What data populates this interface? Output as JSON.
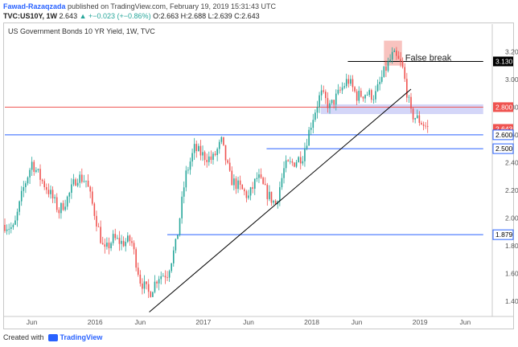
{
  "header": {
    "author": "Fawad-Razaqzada",
    "published": "published on TradingView.com, February 19, 2019 15:31:43 UTC",
    "symbol": "TVC:US10Y, 1W",
    "last": "2.643",
    "change": "▲ +−0.023 (+−0.86%)",
    "ohlc": "O:2.663 H:2.688 L:2.639 C:2.643"
  },
  "footer": {
    "created_with": "Created with",
    "brand": "TradingView"
  },
  "colors": {
    "up": "#26a69a",
    "down": "#ef5350",
    "red_line": "#ef5350",
    "blue_line": "#2962ff",
    "zone": "#c5c8f5",
    "pink": "#f7b9b4"
  },
  "chart_data": {
    "type": "candlestick",
    "title": "US Government Bonds 10 YR Yield, 1W, TVC",
    "x_tick_labels": [
      "Jun",
      "2016",
      "Jun",
      "2017",
      "Jun",
      "2018",
      "Jun",
      "2019",
      "Jun"
    ],
    "x_tick_dates": [
      "2015-06",
      "2016-01",
      "2016-06",
      "2017-01",
      "2017-06",
      "2018-01",
      "2018-06",
      "2019-01",
      "2019-06"
    ],
    "y_ticks": [
      "3.200",
      "3.000",
      "2.800",
      "2.600",
      "2.400",
      "2.200",
      "2.000",
      "1.800",
      "1.600",
      "1.400"
    ],
    "ylim": [
      1.3,
      3.33
    ],
    "price_labels": [
      {
        "value": 3.13,
        "text": "3.130",
        "style": "black"
      },
      {
        "value": 2.8,
        "text": "2.800",
        "style": "red"
      },
      {
        "value": 2.643,
        "text": "2.643",
        "style": "red"
      },
      {
        "value": 2.6,
        "text": "2.600",
        "style": "blue"
      },
      {
        "value": 2.5,
        "text": "2.500",
        "style": "blue"
      },
      {
        "value": 1.879,
        "text": "1.879",
        "style": "blue"
      }
    ],
    "horizontal_lines": [
      {
        "value": 2.8,
        "color": "red",
        "from_date": "2015-03",
        "to_date": "2019-08"
      },
      {
        "value": 2.6,
        "color": "blue",
        "from_date": "2015-03",
        "to_date": "2019-08"
      },
      {
        "value": 2.5,
        "color": "blue",
        "from_date": "2017-08",
        "to_date": "2019-08"
      },
      {
        "value": 1.879,
        "color": "blue",
        "from_date": "2016-09",
        "to_date": "2019-08"
      },
      {
        "value": 3.13,
        "color": "black",
        "from_date": "2018-05",
        "to_date": "2019-08"
      }
    ],
    "zone": {
      "low": 2.75,
      "high": 2.82,
      "from_date": "2018-02",
      "to_date": "2019-08"
    },
    "trendline": {
      "from": [
        "2016-07",
        1.32
      ],
      "to": [
        "2018-12",
        2.93
      ]
    },
    "annotation": {
      "text": "False break",
      "date": "2018-11",
      "value": 3.16
    },
    "highlight": {
      "from_date": "2018-09",
      "to_date": "2018-11",
      "low": 3.1,
      "high": 3.28
    },
    "close_path": [
      [
        "2015-03",
        1.95
      ],
      [
        "2015-04",
        1.92
      ],
      [
        "2015-05",
        2.2
      ],
      [
        "2015-06",
        2.4
      ],
      [
        "2015-07",
        2.28
      ],
      [
        "2015-08",
        2.18
      ],
      [
        "2015-09",
        2.05
      ],
      [
        "2015-10",
        2.15
      ],
      [
        "2015-11",
        2.3
      ],
      [
        "2015-12",
        2.27
      ],
      [
        "2016-01",
        2.02
      ],
      [
        "2016-02",
        1.75
      ],
      [
        "2016-03",
        1.85
      ],
      [
        "2016-04",
        1.82
      ],
      [
        "2016-05",
        1.84
      ],
      [
        "2016-06",
        1.55
      ],
      [
        "2016-07",
        1.45
      ],
      [
        "2016-08",
        1.58
      ],
      [
        "2016-09",
        1.6
      ],
      [
        "2016-10",
        1.82
      ],
      [
        "2016-11",
        2.3
      ],
      [
        "2016-12",
        2.5
      ],
      [
        "2017-01",
        2.45
      ],
      [
        "2017-02",
        2.42
      ],
      [
        "2017-03",
        2.55
      ],
      [
        "2017-04",
        2.28
      ],
      [
        "2017-05",
        2.22
      ],
      [
        "2017-06",
        2.15
      ],
      [
        "2017-07",
        2.3
      ],
      [
        "2017-08",
        2.18
      ],
      [
        "2017-09",
        2.1
      ],
      [
        "2017-10",
        2.37
      ],
      [
        "2017-11",
        2.4
      ],
      [
        "2017-12",
        2.45
      ],
      [
        "2018-01",
        2.7
      ],
      [
        "2018-02",
        2.9
      ],
      [
        "2018-03",
        2.8
      ],
      [
        "2018-04",
        2.9
      ],
      [
        "2018-05",
        3.0
      ],
      [
        "2018-06",
        2.88
      ],
      [
        "2018-07",
        2.9
      ],
      [
        "2018-08",
        2.88
      ],
      [
        "2018-09",
        3.05
      ],
      [
        "2018-10",
        3.18
      ],
      [
        "2018-11",
        3.1
      ],
      [
        "2018-12",
        2.75
      ],
      [
        "2019-01",
        2.7
      ],
      [
        "2019-02",
        2.64
      ]
    ]
  }
}
